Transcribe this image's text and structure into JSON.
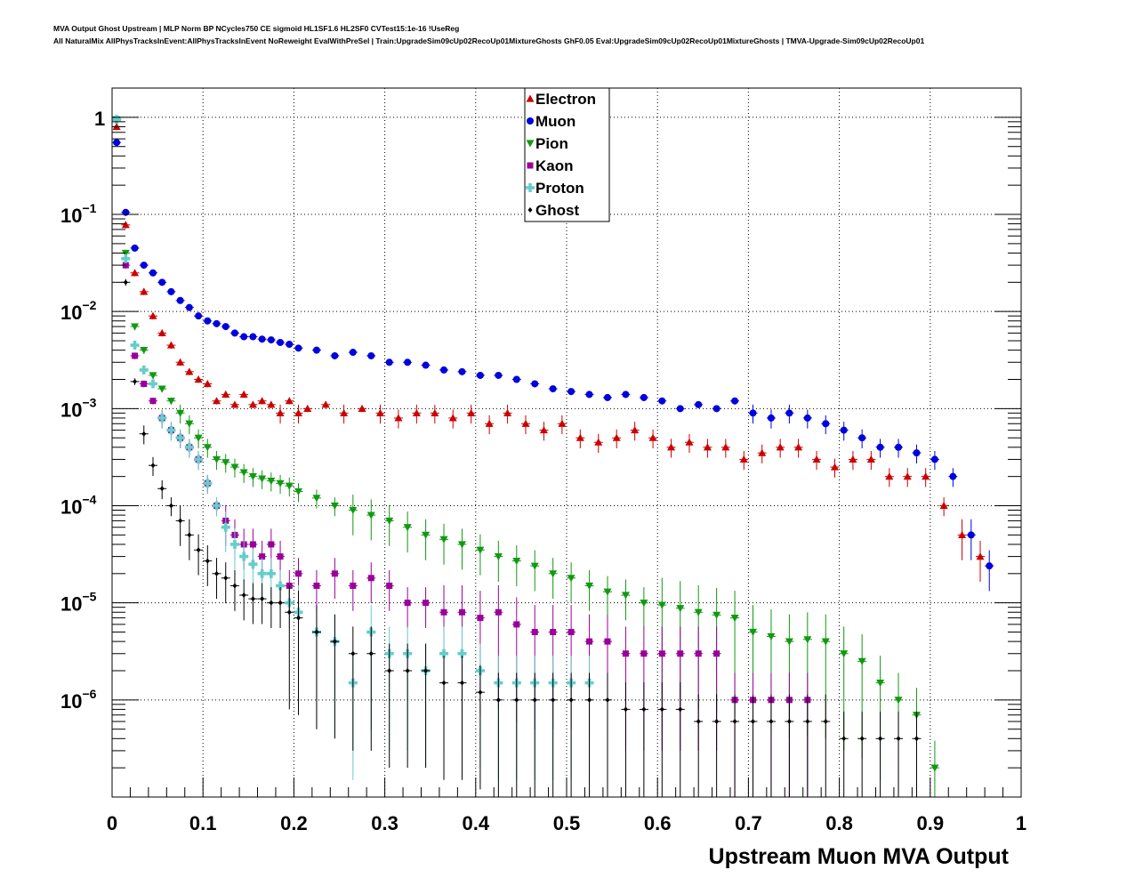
{
  "header": {
    "title": "MVA Output Ghost Upstream | MLP Norm BP NCycles750 CE sigmoid HL1SF1.6 HL2SF0 CVTest15:1e-16 !UseReg",
    "subtitle": "All NaturalMix AllPhysTracksInEvent:AllPhysTracksInEvent NoReweight EvalWithPreSel | Train:UpgradeSim09cUp02RecoUp01MixtureGhosts GhF0.05 Eval:UpgradeSim09cUp02RecoUp01MixtureGhosts | TMVA-Upgrade-Sim09cUp02RecoUp01"
  },
  "colors": {
    "Electron": "#cc0000",
    "Muon": "#0000dd",
    "Pion": "#119911",
    "Kaon": "#990099",
    "Proton": "#66cccc",
    "Ghost": "#000000"
  },
  "chart_data": {
    "type": "scatter",
    "title": "",
    "xlabel": "Upstream Muon MVA Output",
    "ylabel": "",
    "xlim": [
      0,
      1
    ],
    "ylim": [
      1e-07,
      2
    ],
    "log_y": true,
    "grid": true,
    "legend_position": "top-center",
    "x_ticks": [
      "0",
      "0.1",
      "0.2",
      "0.3",
      "0.4",
      "0.5",
      "0.6",
      "0.7",
      "0.8",
      "0.9",
      "1"
    ],
    "y_ticks": [
      {
        "base": "1",
        "exp": ""
      },
      {
        "base": "10",
        "exp": "−1"
      },
      {
        "base": "10",
        "exp": "−2"
      },
      {
        "base": "10",
        "exp": "−3"
      },
      {
        "base": "10",
        "exp": "−4"
      },
      {
        "base": "10",
        "exp": "−5"
      },
      {
        "base": "10",
        "exp": "−6"
      }
    ],
    "series": [
      {
        "name": "Electron",
        "marker": "triangle-up",
        "x": [
          0.005,
          0.015,
          0.025,
          0.035,
          0.045,
          0.055,
          0.065,
          0.075,
          0.085,
          0.095,
          0.105,
          0.115,
          0.125,
          0.135,
          0.145,
          0.155,
          0.165,
          0.175,
          0.185,
          0.195,
          0.205,
          0.215,
          0.235,
          0.255,
          0.275,
          0.295,
          0.315,
          0.335,
          0.355,
          0.375,
          0.395,
          0.415,
          0.435,
          0.455,
          0.475,
          0.495,
          0.515,
          0.535,
          0.555,
          0.575,
          0.595,
          0.615,
          0.635,
          0.655,
          0.675,
          0.695,
          0.715,
          0.735,
          0.755,
          0.775,
          0.795,
          0.815,
          0.835,
          0.855,
          0.875,
          0.895,
          0.915,
          0.935,
          0.955
        ],
        "y": [
          0.8,
          0.078,
          0.025,
          0.016,
          0.009,
          0.006,
          0.0045,
          0.003,
          0.0024,
          0.002,
          0.0018,
          0.0012,
          0.0014,
          0.0011,
          0.0014,
          0.0011,
          0.0012,
          0.0011,
          0.0009,
          0.0012,
          0.0009,
          0.001,
          0.0011,
          0.0009,
          0.001,
          0.0009,
          0.0008,
          0.0009,
          0.0009,
          0.0008,
          0.0009,
          0.0007,
          0.0009,
          0.0007,
          0.0006,
          0.0007,
          0.0005,
          0.00045,
          0.0005,
          0.0006,
          0.0005,
          0.0004,
          0.00045,
          0.0004,
          0.0004,
          0.0003,
          0.00035,
          0.0004,
          0.0004,
          0.0003,
          0.00025,
          0.0003,
          0.0003,
          0.0002,
          0.0002,
          0.0002,
          0.0001,
          5e-05,
          3e-05
        ]
      },
      {
        "name": "Muon",
        "marker": "circle",
        "x": [
          0.005,
          0.015,
          0.025,
          0.035,
          0.045,
          0.055,
          0.065,
          0.075,
          0.085,
          0.095,
          0.105,
          0.115,
          0.125,
          0.135,
          0.145,
          0.155,
          0.165,
          0.175,
          0.185,
          0.195,
          0.205,
          0.225,
          0.245,
          0.265,
          0.285,
          0.305,
          0.325,
          0.345,
          0.365,
          0.385,
          0.405,
          0.425,
          0.445,
          0.465,
          0.485,
          0.505,
          0.525,
          0.545,
          0.565,
          0.585,
          0.605,
          0.625,
          0.645,
          0.665,
          0.685,
          0.705,
          0.725,
          0.745,
          0.765,
          0.785,
          0.805,
          0.825,
          0.845,
          0.865,
          0.885,
          0.905,
          0.925,
          0.945,
          0.965
        ],
        "y": [
          0.55,
          0.105,
          0.045,
          0.03,
          0.025,
          0.02,
          0.016,
          0.013,
          0.011,
          0.009,
          0.008,
          0.0075,
          0.007,
          0.006,
          0.0055,
          0.0055,
          0.0052,
          0.0051,
          0.0048,
          0.0046,
          0.0042,
          0.004,
          0.0035,
          0.0038,
          0.0035,
          0.003,
          0.003,
          0.0028,
          0.0025,
          0.0024,
          0.0022,
          0.0022,
          0.002,
          0.0018,
          0.0016,
          0.0015,
          0.0014,
          0.0013,
          0.0014,
          0.0013,
          0.0012,
          0.001,
          0.0011,
          0.001,
          0.0012,
          0.0009,
          0.0008,
          0.0009,
          0.0008,
          0.0007,
          0.0006,
          0.0005,
          0.0004,
          0.0004,
          0.00035,
          0.0003,
          0.0002,
          5e-05,
          2.4e-05
        ]
      },
      {
        "name": "Pion",
        "marker": "triangle-down",
        "x": [
          0.005,
          0.015,
          0.025,
          0.035,
          0.045,
          0.055,
          0.065,
          0.075,
          0.085,
          0.095,
          0.105,
          0.115,
          0.125,
          0.135,
          0.145,
          0.155,
          0.165,
          0.175,
          0.185,
          0.195,
          0.205,
          0.225,
          0.245,
          0.265,
          0.285,
          0.305,
          0.325,
          0.345,
          0.365,
          0.385,
          0.405,
          0.425,
          0.445,
          0.465,
          0.485,
          0.505,
          0.525,
          0.545,
          0.565,
          0.585,
          0.605,
          0.625,
          0.645,
          0.665,
          0.685,
          0.705,
          0.725,
          0.745,
          0.765,
          0.785,
          0.805,
          0.825,
          0.845,
          0.865,
          0.885,
          0.905
        ],
        "y": [
          0.95,
          0.04,
          0.007,
          0.004,
          0.0022,
          0.0016,
          0.0012,
          0.0009,
          0.0007,
          0.0005,
          0.0004,
          0.0003,
          0.00028,
          0.00025,
          0.00022,
          0.0002,
          0.00019,
          0.00018,
          0.00017,
          0.00016,
          0.00014,
          0.00012,
          0.0001,
          9e-05,
          8e-05,
          7e-05,
          6e-05,
          5e-05,
          4.5e-05,
          4e-05,
          3.5e-05,
          3e-05,
          2.7e-05,
          2.4e-05,
          2e-05,
          1.8e-05,
          1.5e-05,
          1.3e-05,
          1.2e-05,
          1e-05,
          9.5e-06,
          8.8e-06,
          8e-06,
          7.5e-06,
          7e-06,
          5e-06,
          4.5e-06,
          4e-06,
          4.2e-06,
          4e-06,
          3e-06,
          2.5e-06,
          1.5e-06,
          1e-06,
          7e-07,
          2e-07
        ]
      },
      {
        "name": "Kaon",
        "marker": "square",
        "x": [
          0.015,
          0.025,
          0.035,
          0.045,
          0.055,
          0.065,
          0.075,
          0.085,
          0.095,
          0.105,
          0.115,
          0.125,
          0.135,
          0.145,
          0.155,
          0.165,
          0.175,
          0.185,
          0.195,
          0.205,
          0.225,
          0.245,
          0.265,
          0.285,
          0.305,
          0.325,
          0.345,
          0.365,
          0.385,
          0.405,
          0.425,
          0.445,
          0.465,
          0.485,
          0.505,
          0.525,
          0.545,
          0.565,
          0.585,
          0.605,
          0.625,
          0.645,
          0.665,
          0.685,
          0.705,
          0.725,
          0.745,
          0.765
        ],
        "y": [
          0.03,
          0.0035,
          0.0018,
          0.0012,
          0.0008,
          0.0006,
          0.0005,
          0.0004,
          0.0003,
          0.00017,
          0.0001,
          7e-05,
          5e-05,
          4e-05,
          4e-05,
          3e-05,
          4e-05,
          3e-05,
          1.5e-05,
          2e-05,
          1.5e-05,
          2e-05,
          1.5e-05,
          1.8e-05,
          1.5e-05,
          1e-05,
          1e-05,
          8e-06,
          8e-06,
          7e-06,
          8e-06,
          6e-06,
          5e-06,
          5e-06,
          5e-06,
          4e-06,
          4e-06,
          3e-06,
          3e-06,
          3e-06,
          3e-06,
          3e-06,
          3e-06,
          1e-06,
          1e-06,
          1e-06,
          1e-06,
          1e-06
        ]
      },
      {
        "name": "Proton",
        "marker": "cross",
        "x": [
          0.005,
          0.015,
          0.025,
          0.035,
          0.045,
          0.055,
          0.065,
          0.075,
          0.085,
          0.095,
          0.105,
          0.115,
          0.125,
          0.135,
          0.145,
          0.155,
          0.165,
          0.175,
          0.185,
          0.195,
          0.205,
          0.225,
          0.245,
          0.265,
          0.285,
          0.305,
          0.325,
          0.345,
          0.365,
          0.385,
          0.405,
          0.425,
          0.445,
          0.465,
          0.485,
          0.505,
          0.525
        ],
        "y": [
          0.95,
          0.035,
          0.0045,
          0.0025,
          0.0018,
          0.0008,
          0.0006,
          0.0005,
          0.0004,
          0.0003,
          0.00017,
          0.0001,
          6e-05,
          4e-05,
          3e-05,
          2.5e-05,
          2e-05,
          2e-05,
          1.5e-05,
          1e-05,
          8e-06,
          5e-06,
          4e-06,
          1.5e-06,
          5e-06,
          3e-06,
          3e-06,
          2e-06,
          3e-06,
          3e-06,
          2e-06,
          1.5e-06,
          1.5e-06,
          1.5e-06,
          1.5e-06,
          1.5e-06,
          1.5e-06
        ]
      },
      {
        "name": "Ghost",
        "marker": "diamond",
        "x": [
          0.015,
          0.025,
          0.035,
          0.045,
          0.055,
          0.065,
          0.075,
          0.085,
          0.095,
          0.105,
          0.115,
          0.125,
          0.135,
          0.145,
          0.155,
          0.165,
          0.175,
          0.185,
          0.195,
          0.205,
          0.225,
          0.245,
          0.265,
          0.285,
          0.305,
          0.325,
          0.345,
          0.365,
          0.385,
          0.405,
          0.425,
          0.445,
          0.465,
          0.485,
          0.505,
          0.525,
          0.545,
          0.565,
          0.585,
          0.605,
          0.625,
          0.645,
          0.665,
          0.685,
          0.705,
          0.725,
          0.745,
          0.765,
          0.785,
          0.805,
          0.825,
          0.845,
          0.865,
          0.885
        ],
        "y": [
          0.02,
          0.0019,
          0.00055,
          0.00026,
          0.00015,
          0.0001,
          7e-05,
          5e-05,
          3.5e-05,
          2.7e-05,
          2e-05,
          1.8e-05,
          1.5e-05,
          1.2e-05,
          1.1e-05,
          1.1e-05,
          1e-05,
          1e-05,
          8e-06,
          7e-06,
          5e-06,
          4e-06,
          3e-06,
          3e-06,
          2e-06,
          2e-06,
          2e-06,
          1.5e-06,
          1.5e-06,
          1.2e-06,
          1e-06,
          1e-06,
          1e-06,
          1e-06,
          1e-06,
          1e-06,
          1e-06,
          8e-07,
          8e-07,
          8e-07,
          8e-07,
          6e-07,
          6e-07,
          6e-07,
          6e-07,
          6e-07,
          6e-07,
          6e-07,
          6e-07,
          4e-07,
          4e-07,
          4e-07,
          4e-07,
          4e-07
        ]
      }
    ]
  }
}
